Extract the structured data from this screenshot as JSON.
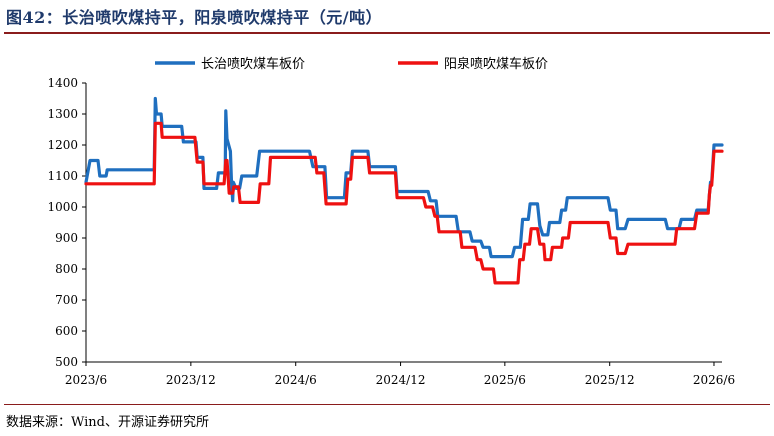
{
  "title": "图42：长治喷吹煤持平，阳泉喷吹煤持平（元/吨）",
  "source": "数据来源：Wind、开源证券研究所",
  "chart_data": {
    "type": "line",
    "title": "图42：长治喷吹煤持平，阳泉喷吹煤持平（元/吨）",
    "xlabel": "",
    "ylabel": "",
    "ylim": [
      500,
      1400
    ],
    "yticks": [
      500,
      600,
      700,
      800,
      900,
      1000,
      1100,
      1200,
      1300,
      1400
    ],
    "xlim": [
      "2023-06-01",
      "2026-06-15"
    ],
    "xtick_dates": [
      "2023-06-01",
      "2023-12-01",
      "2024-06-01",
      "2024-12-01",
      "2025-06-01",
      "2025-12-01",
      "2026-06-01"
    ],
    "xtick_labels": [
      "2023/6",
      "2023/12",
      "2024/6",
      "2024/12",
      "2025/6",
      "2025/12",
      "2026/6"
    ],
    "legend_position": "top",
    "grid": false,
    "series": [
      {
        "name": "长治喷吹煤车板价",
        "color": "#1f6fbf",
        "points": [
          [
            "2023-06-01",
            1080
          ],
          [
            "2023-06-08",
            1150
          ],
          [
            "2023-06-22",
            1150
          ],
          [
            "2023-06-25",
            1100
          ],
          [
            "2023-07-06",
            1100
          ],
          [
            "2023-07-08",
            1120
          ],
          [
            "2023-09-28",
            1120
          ],
          [
            "2023-09-30",
            1350
          ],
          [
            "2023-10-02",
            1300
          ],
          [
            "2023-10-10",
            1300
          ],
          [
            "2023-10-12",
            1260
          ],
          [
            "2023-11-15",
            1260
          ],
          [
            "2023-11-18",
            1210
          ],
          [
            "2023-12-10",
            1210
          ],
          [
            "2023-12-12",
            1160
          ],
          [
            "2023-12-22",
            1160
          ],
          [
            "2023-12-24",
            1060
          ],
          [
            "2024-01-15",
            1060
          ],
          [
            "2024-01-18",
            1110
          ],
          [
            "2024-01-30",
            1110
          ],
          [
            "2024-01-31",
            1310
          ],
          [
            "2024-02-02",
            1220
          ],
          [
            "2024-02-05",
            1200
          ],
          [
            "2024-02-08",
            1180
          ],
          [
            "2024-02-10",
            1080
          ],
          [
            "2024-02-12",
            1020
          ],
          [
            "2024-02-13",
            1080
          ],
          [
            "2024-02-18",
            1060
          ],
          [
            "2024-02-24",
            1060
          ],
          [
            "2024-02-28",
            1100
          ],
          [
            "2024-03-25",
            1100
          ],
          [
            "2024-03-30",
            1180
          ],
          [
            "2024-06-25",
            1180
          ],
          [
            "2024-07-01",
            1130
          ],
          [
            "2024-07-22",
            1130
          ],
          [
            "2024-07-25",
            1030
          ],
          [
            "2024-08-25",
            1030
          ],
          [
            "2024-08-28",
            1110
          ],
          [
            "2024-09-05",
            1110
          ],
          [
            "2024-09-08",
            1180
          ],
          [
            "2024-10-05",
            1180
          ],
          [
            "2024-10-08",
            1130
          ],
          [
            "2024-11-22",
            1130
          ],
          [
            "2024-11-25",
            1050
          ],
          [
            "2025-01-18",
            1050
          ],
          [
            "2025-01-22",
            1020
          ],
          [
            "2025-02-01",
            1020
          ],
          [
            "2025-02-04",
            970
          ],
          [
            "2025-03-08",
            970
          ],
          [
            "2025-03-12",
            920
          ],
          [
            "2025-04-01",
            920
          ],
          [
            "2025-04-05",
            890
          ],
          [
            "2025-04-20",
            890
          ],
          [
            "2025-04-24",
            870
          ],
          [
            "2025-05-05",
            870
          ],
          [
            "2025-05-08",
            840
          ],
          [
            "2025-06-14",
            840
          ],
          [
            "2025-06-18",
            870
          ],
          [
            "2025-06-28",
            870
          ],
          [
            "2025-07-02",
            960
          ],
          [
            "2025-07-12",
            960
          ],
          [
            "2025-07-15",
            1010
          ],
          [
            "2025-07-28",
            1010
          ],
          [
            "2025-08-01",
            940
          ],
          [
            "2025-08-06",
            910
          ],
          [
            "2025-08-15",
            910
          ],
          [
            "2025-08-18",
            950
          ],
          [
            "2025-09-05",
            950
          ],
          [
            "2025-09-08",
            990
          ],
          [
            "2025-09-15",
            990
          ],
          [
            "2025-09-18",
            1030
          ],
          [
            "2025-11-28",
            1030
          ],
          [
            "2025-12-02",
            990
          ],
          [
            "2025-12-12",
            990
          ],
          [
            "2025-12-15",
            930
          ],
          [
            "2025-12-28",
            930
          ],
          [
            "2026-01-02",
            960
          ],
          [
            "2026-03-08",
            960
          ],
          [
            "2026-03-12",
            930
          ],
          [
            "2026-04-01",
            930
          ],
          [
            "2026-04-05",
            960
          ],
          [
            "2026-04-28",
            960
          ],
          [
            "2026-05-02",
            990
          ],
          [
            "2026-05-22",
            990
          ],
          [
            "2026-05-24",
            1040
          ],
          [
            "2026-05-26",
            1080
          ],
          [
            "2026-05-28",
            1080
          ],
          [
            "2026-06-01",
            1200
          ],
          [
            "2026-06-15",
            1200
          ]
        ]
      },
      {
        "name": "阳泉喷吹煤车板价",
        "color": "#ee1111",
        "points": [
          [
            "2023-06-01",
            1075
          ],
          [
            "2023-09-28",
            1075
          ],
          [
            "2023-09-30",
            1270
          ],
          [
            "2023-10-10",
            1270
          ],
          [
            "2023-10-12",
            1225
          ],
          [
            "2023-12-08",
            1225
          ],
          [
            "2023-12-12",
            1145
          ],
          [
            "2023-12-22",
            1145
          ],
          [
            "2023-12-24",
            1075
          ],
          [
            "2024-01-20",
            1075
          ],
          [
            "2024-01-28",
            1075
          ],
          [
            "2024-01-31",
            1150
          ],
          [
            "2024-02-02",
            1150
          ],
          [
            "2024-02-06",
            1045
          ],
          [
            "2024-02-12",
            1045
          ],
          [
            "2024-02-14",
            1065
          ],
          [
            "2024-02-22",
            1065
          ],
          [
            "2024-02-25",
            1015
          ],
          [
            "2024-03-28",
            1015
          ],
          [
            "2024-03-31",
            1075
          ],
          [
            "2024-04-15",
            1075
          ],
          [
            "2024-04-18",
            1160
          ],
          [
            "2024-07-05",
            1160
          ],
          [
            "2024-07-08",
            1110
          ],
          [
            "2024-07-20",
            1110
          ],
          [
            "2024-07-24",
            1010
          ],
          [
            "2024-08-28",
            1010
          ],
          [
            "2024-08-31",
            1090
          ],
          [
            "2024-09-05",
            1090
          ],
          [
            "2024-09-08",
            1160
          ],
          [
            "2024-10-05",
            1160
          ],
          [
            "2024-10-08",
            1110
          ],
          [
            "2024-11-22",
            1110
          ],
          [
            "2024-11-25",
            1030
          ],
          [
            "2025-01-10",
            1030
          ],
          [
            "2025-01-14",
            1000
          ],
          [
            "2025-01-26",
            1000
          ],
          [
            "2025-01-30",
            970
          ],
          [
            "2025-02-03",
            970
          ],
          [
            "2025-02-06",
            920
          ],
          [
            "2025-03-15",
            920
          ],
          [
            "2025-03-18",
            870
          ],
          [
            "2025-04-10",
            870
          ],
          [
            "2025-04-14",
            830
          ],
          [
            "2025-04-20",
            830
          ],
          [
            "2025-04-24",
            800
          ],
          [
            "2025-05-12",
            800
          ],
          [
            "2025-05-15",
            755
          ],
          [
            "2025-06-24",
            755
          ],
          [
            "2025-06-27",
            830
          ],
          [
            "2025-07-03",
            830
          ],
          [
            "2025-07-06",
            880
          ],
          [
            "2025-07-14",
            880
          ],
          [
            "2025-07-17",
            930
          ],
          [
            "2025-07-28",
            930
          ],
          [
            "2025-08-01",
            880
          ],
          [
            "2025-08-08",
            880
          ],
          [
            "2025-08-10",
            830
          ],
          [
            "2025-08-20",
            830
          ],
          [
            "2025-08-23",
            870
          ],
          [
            "2025-09-08",
            870
          ],
          [
            "2025-09-10",
            900
          ],
          [
            "2025-09-20",
            900
          ],
          [
            "2025-09-23",
            950
          ],
          [
            "2025-11-28",
            950
          ],
          [
            "2025-12-02",
            900
          ],
          [
            "2025-12-12",
            900
          ],
          [
            "2025-12-15",
            850
          ],
          [
            "2025-12-28",
            850
          ],
          [
            "2026-01-02",
            880
          ],
          [
            "2026-03-25",
            880
          ],
          [
            "2026-03-28",
            930
          ],
          [
            "2026-04-28",
            930
          ],
          [
            "2026-05-02",
            980
          ],
          [
            "2026-05-22",
            980
          ],
          [
            "2026-05-24",
            1040
          ],
          [
            "2026-05-26",
            1070
          ],
          [
            "2026-05-28",
            1070
          ],
          [
            "2026-06-01",
            1180
          ],
          [
            "2026-06-15",
            1180
          ]
        ]
      }
    ]
  }
}
